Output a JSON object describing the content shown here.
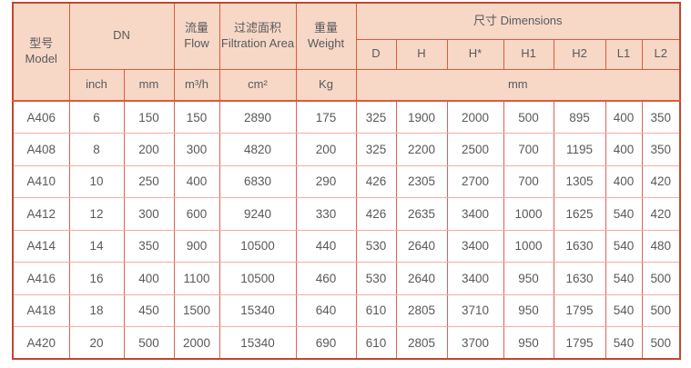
{
  "table": {
    "header": {
      "model": {
        "cn": "型号",
        "en": "Model"
      },
      "dn": "DN",
      "flow": {
        "cn": "流量",
        "en": "Flow"
      },
      "filtration": {
        "cn": "过滤面积",
        "en": "Filtration Area"
      },
      "weight": {
        "cn": "重量",
        "en": "Weight"
      },
      "dimensions": "尺寸 Dimensions",
      "dim_columns": [
        "D",
        "H",
        "H*",
        "H1",
        "H2",
        "L1",
        "L2"
      ],
      "units": {
        "inch": "inch",
        "mm": "mm",
        "flow": "m³/h",
        "area": "cm²",
        "weight": "Kg",
        "dims_mm": "mm"
      }
    },
    "rows": [
      [
        "A406",
        "6",
        "150",
        "150",
        "2890",
        "175",
        "325",
        "1900",
        "2000",
        "500",
        "895",
        "400",
        "350"
      ],
      [
        "A408",
        "8",
        "200",
        "300",
        "4820",
        "200",
        "325",
        "2200",
        "2500",
        "700",
        "1195",
        "400",
        "350"
      ],
      [
        "A410",
        "10",
        "250",
        "400",
        "6830",
        "290",
        "426",
        "2305",
        "2700",
        "700",
        "1305",
        "400",
        "420"
      ],
      [
        "A412",
        "12",
        "300",
        "600",
        "9240",
        "330",
        "426",
        "2635",
        "3400",
        "1000",
        "1625",
        "540",
        "420"
      ],
      [
        "A414",
        "14",
        "350",
        "900",
        "10500",
        "440",
        "530",
        "2640",
        "3400",
        "1000",
        "1630",
        "540",
        "480"
      ],
      [
        "A416",
        "16",
        "400",
        "1100",
        "10500",
        "460",
        "530",
        "2640",
        "3400",
        "950",
        "1630",
        "540",
        "500"
      ],
      [
        "A418",
        "18",
        "450",
        "1500",
        "15340",
        "640",
        "610",
        "2805",
        "3710",
        "950",
        "1795",
        "540",
        "500"
      ],
      [
        "A420",
        "20",
        "500",
        "2000",
        "15340",
        "690",
        "610",
        "2805",
        "3700",
        "950",
        "1795",
        "540",
        "500"
      ]
    ]
  },
  "colors": {
    "header_bg": "#f7d8c7",
    "header_border": "#e0593a",
    "outer_border": "#c64531",
    "data_v_border": "#de6156",
    "data_h_border": "#f3aca5",
    "text": "#58595b"
  }
}
